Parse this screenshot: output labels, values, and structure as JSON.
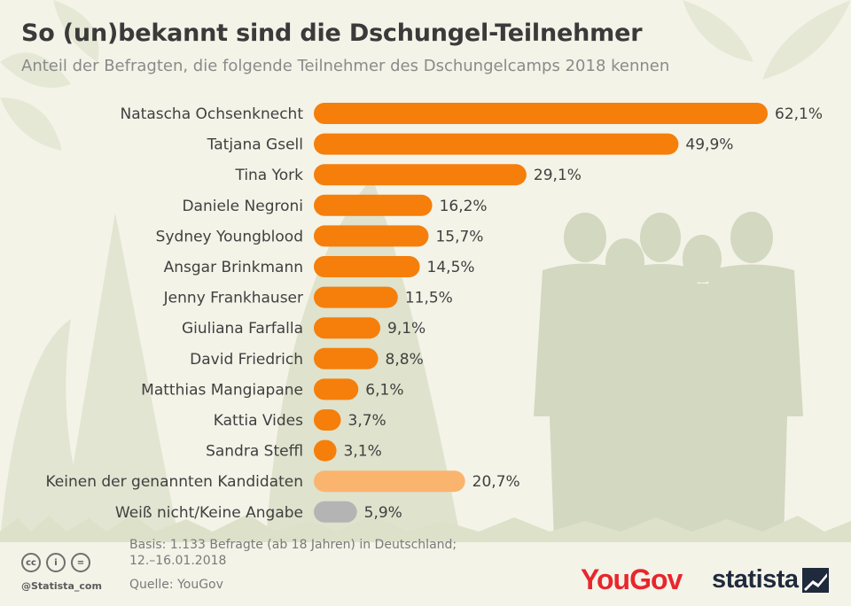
{
  "header": {
    "title": "So (un)bekannt sind die Dschungel-Teilnehmer",
    "subtitle": "Anteil der Befragten, die folgende Teilnehmer des Dschungelcamps 2018 kennen"
  },
  "chart_data": {
    "type": "bar",
    "orientation": "horizontal",
    "title": "So (un)bekannt sind die Dschungel-Teilnehmer",
    "subtitle": "Anteil der Befragten, die folgende Teilnehmer des Dschungelcamps 2018 kennen",
    "xlabel": "",
    "ylabel": "",
    "unit": "%",
    "xlim": [
      0,
      62.1
    ],
    "grid": false,
    "categories": [
      "Natascha Ochsenknecht",
      "Tatjana Gsell",
      "Tina York",
      "Daniele Negroni",
      "Sydney Youngblood",
      "Ansgar Brinkmann",
      "Jenny Frankhauser",
      "Giuliana Farfalla",
      "David Friedrich",
      "Matthias Mangiapane",
      "Kattia Vides",
      "Sandra Steffl",
      "Keinen der genannten Kandidaten",
      "Weiß nicht/Keine Angabe"
    ],
    "values": [
      62.1,
      49.9,
      29.1,
      16.2,
      15.7,
      14.5,
      11.5,
      9.1,
      8.8,
      6.1,
      3.7,
      3.1,
      20.7,
      5.9
    ],
    "value_labels": [
      "62,1%",
      "49,9%",
      "29,1%",
      "16,2%",
      "15,7%",
      "14,5%",
      "11,5%",
      "9,1%",
      "8,8%",
      "6,1%",
      "3,7%",
      "3,1%",
      "20,7%",
      "5,9%"
    ],
    "bar_colors": [
      "#f57f0a",
      "#f57f0a",
      "#f57f0a",
      "#f57f0a",
      "#f57f0a",
      "#f57f0a",
      "#f57f0a",
      "#f57f0a",
      "#f57f0a",
      "#f57f0a",
      "#f57f0a",
      "#f57f0a",
      "#fab46e",
      "#b4b4b4"
    ]
  },
  "footer": {
    "basis_line1": "Basis: 1.133 Befragte (ab 18 Jahren) in Deutschland;",
    "basis_line2": "12.–16.01.2018",
    "source": "Quelle: YouGov",
    "handle": "@Statista_com",
    "cc_icons": [
      "cc-icon",
      "by-icon",
      "nd-icon"
    ],
    "cc_glyphs": [
      "cc",
      "i",
      "="
    ],
    "yougov_logo": "YouGov",
    "statista_logo": "statista"
  },
  "colors": {
    "background": "#f4f3e8",
    "bar_primary": "#f57f0a",
    "bar_none": "#fab46e",
    "bar_unknown": "#b4b4b4",
    "decor": "#dfe2cc"
  }
}
